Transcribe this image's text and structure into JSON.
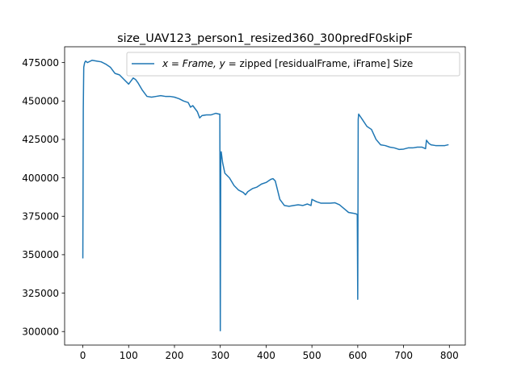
{
  "chart_data": {
    "type": "line",
    "title": "size_UAV123_person1_resized360_300predF0skipF",
    "xlabel": "",
    "ylabel": "",
    "xlim": [
      -39.75,
      834.75
    ],
    "ylim": [
      291200,
      485300
    ],
    "x_ticks": [
      0,
      100,
      200,
      300,
      400,
      500,
      600,
      700,
      800
    ],
    "x_tick_labels": [
      "0",
      "100",
      "200",
      "300",
      "400",
      "500",
      "600",
      "700",
      "800"
    ],
    "y_ticks": [
      300000,
      325000,
      350000,
      375000,
      400000,
      425000,
      450000,
      475000
    ],
    "y_tick_labels": [
      "300000",
      "325000",
      "350000",
      "375000",
      "400000",
      "425000",
      "450000",
      "475000"
    ],
    "grid": false,
    "legend": {
      "position": "top-right",
      "entries": [
        "x = Frame, y =  zipped [residualFrame, iFrame] Size"
      ],
      "math_part": "x = Frame, y = ",
      "text_part": " zipped [residualFrame, iFrame] Size"
    },
    "colors": {
      "series": "#1f77b4"
    },
    "series": [
      {
        "name": "x = Frame, y =  zipped [residualFrame, iFrame] Size",
        "x": [
          0,
          1,
          2,
          4,
          6,
          10,
          20,
          30,
          40,
          50,
          60,
          70,
          80,
          90,
          100,
          110,
          115,
          120,
          130,
          140,
          150,
          160,
          170,
          180,
          190,
          200,
          210,
          220,
          230,
          235,
          240,
          250,
          255,
          260,
          270,
          280,
          290,
          297,
          299,
          300,
          301,
          302,
          305,
          310,
          320,
          330,
          340,
          350,
          355,
          360,
          370,
          380,
          390,
          400,
          410,
          415,
          420,
          425,
          430,
          440,
          450,
          460,
          470,
          480,
          490,
          498,
          500,
          510,
          520,
          540,
          550,
          560,
          570,
          580,
          590,
          597,
          599,
          600,
          601,
          602,
          610,
          620,
          630,
          640,
          650,
          660,
          670,
          680,
          690,
          700,
          710,
          720,
          730,
          740,
          748,
          750,
          755,
          760,
          770,
          780,
          790,
          797
        ],
        "y": [
          348000,
          445000,
          472000,
          475000,
          476000,
          475000,
          476500,
          476000,
          475500,
          474000,
          472000,
          468000,
          467000,
          464000,
          461000,
          465000,
          464000,
          462000,
          457000,
          453000,
          452500,
          453000,
          453500,
          453000,
          453000,
          452500,
          451500,
          450000,
          449000,
          446000,
          447000,
          443000,
          439000,
          440500,
          441000,
          441000,
          442000,
          441500,
          441500,
          300500,
          412000,
          417000,
          410000,
          403000,
          400000,
          395000,
          392000,
          390500,
          389000,
          391000,
          393000,
          394000,
          396000,
          397000,
          399000,
          399500,
          398000,
          392000,
          386000,
          382000,
          381500,
          382000,
          382500,
          382000,
          383000,
          382000,
          386000,
          384500,
          383500,
          383500,
          383800,
          382500,
          380000,
          377500,
          377000,
          376500,
          376000,
          321000,
          438000,
          441500,
          438000,
          433500,
          431500,
          425000,
          421500,
          421000,
          420000,
          419500,
          418500,
          418700,
          419500,
          419500,
          420000,
          420000,
          419000,
          424500,
          422500,
          421500,
          421000,
          421000,
          421000,
          421500
        ]
      }
    ]
  }
}
